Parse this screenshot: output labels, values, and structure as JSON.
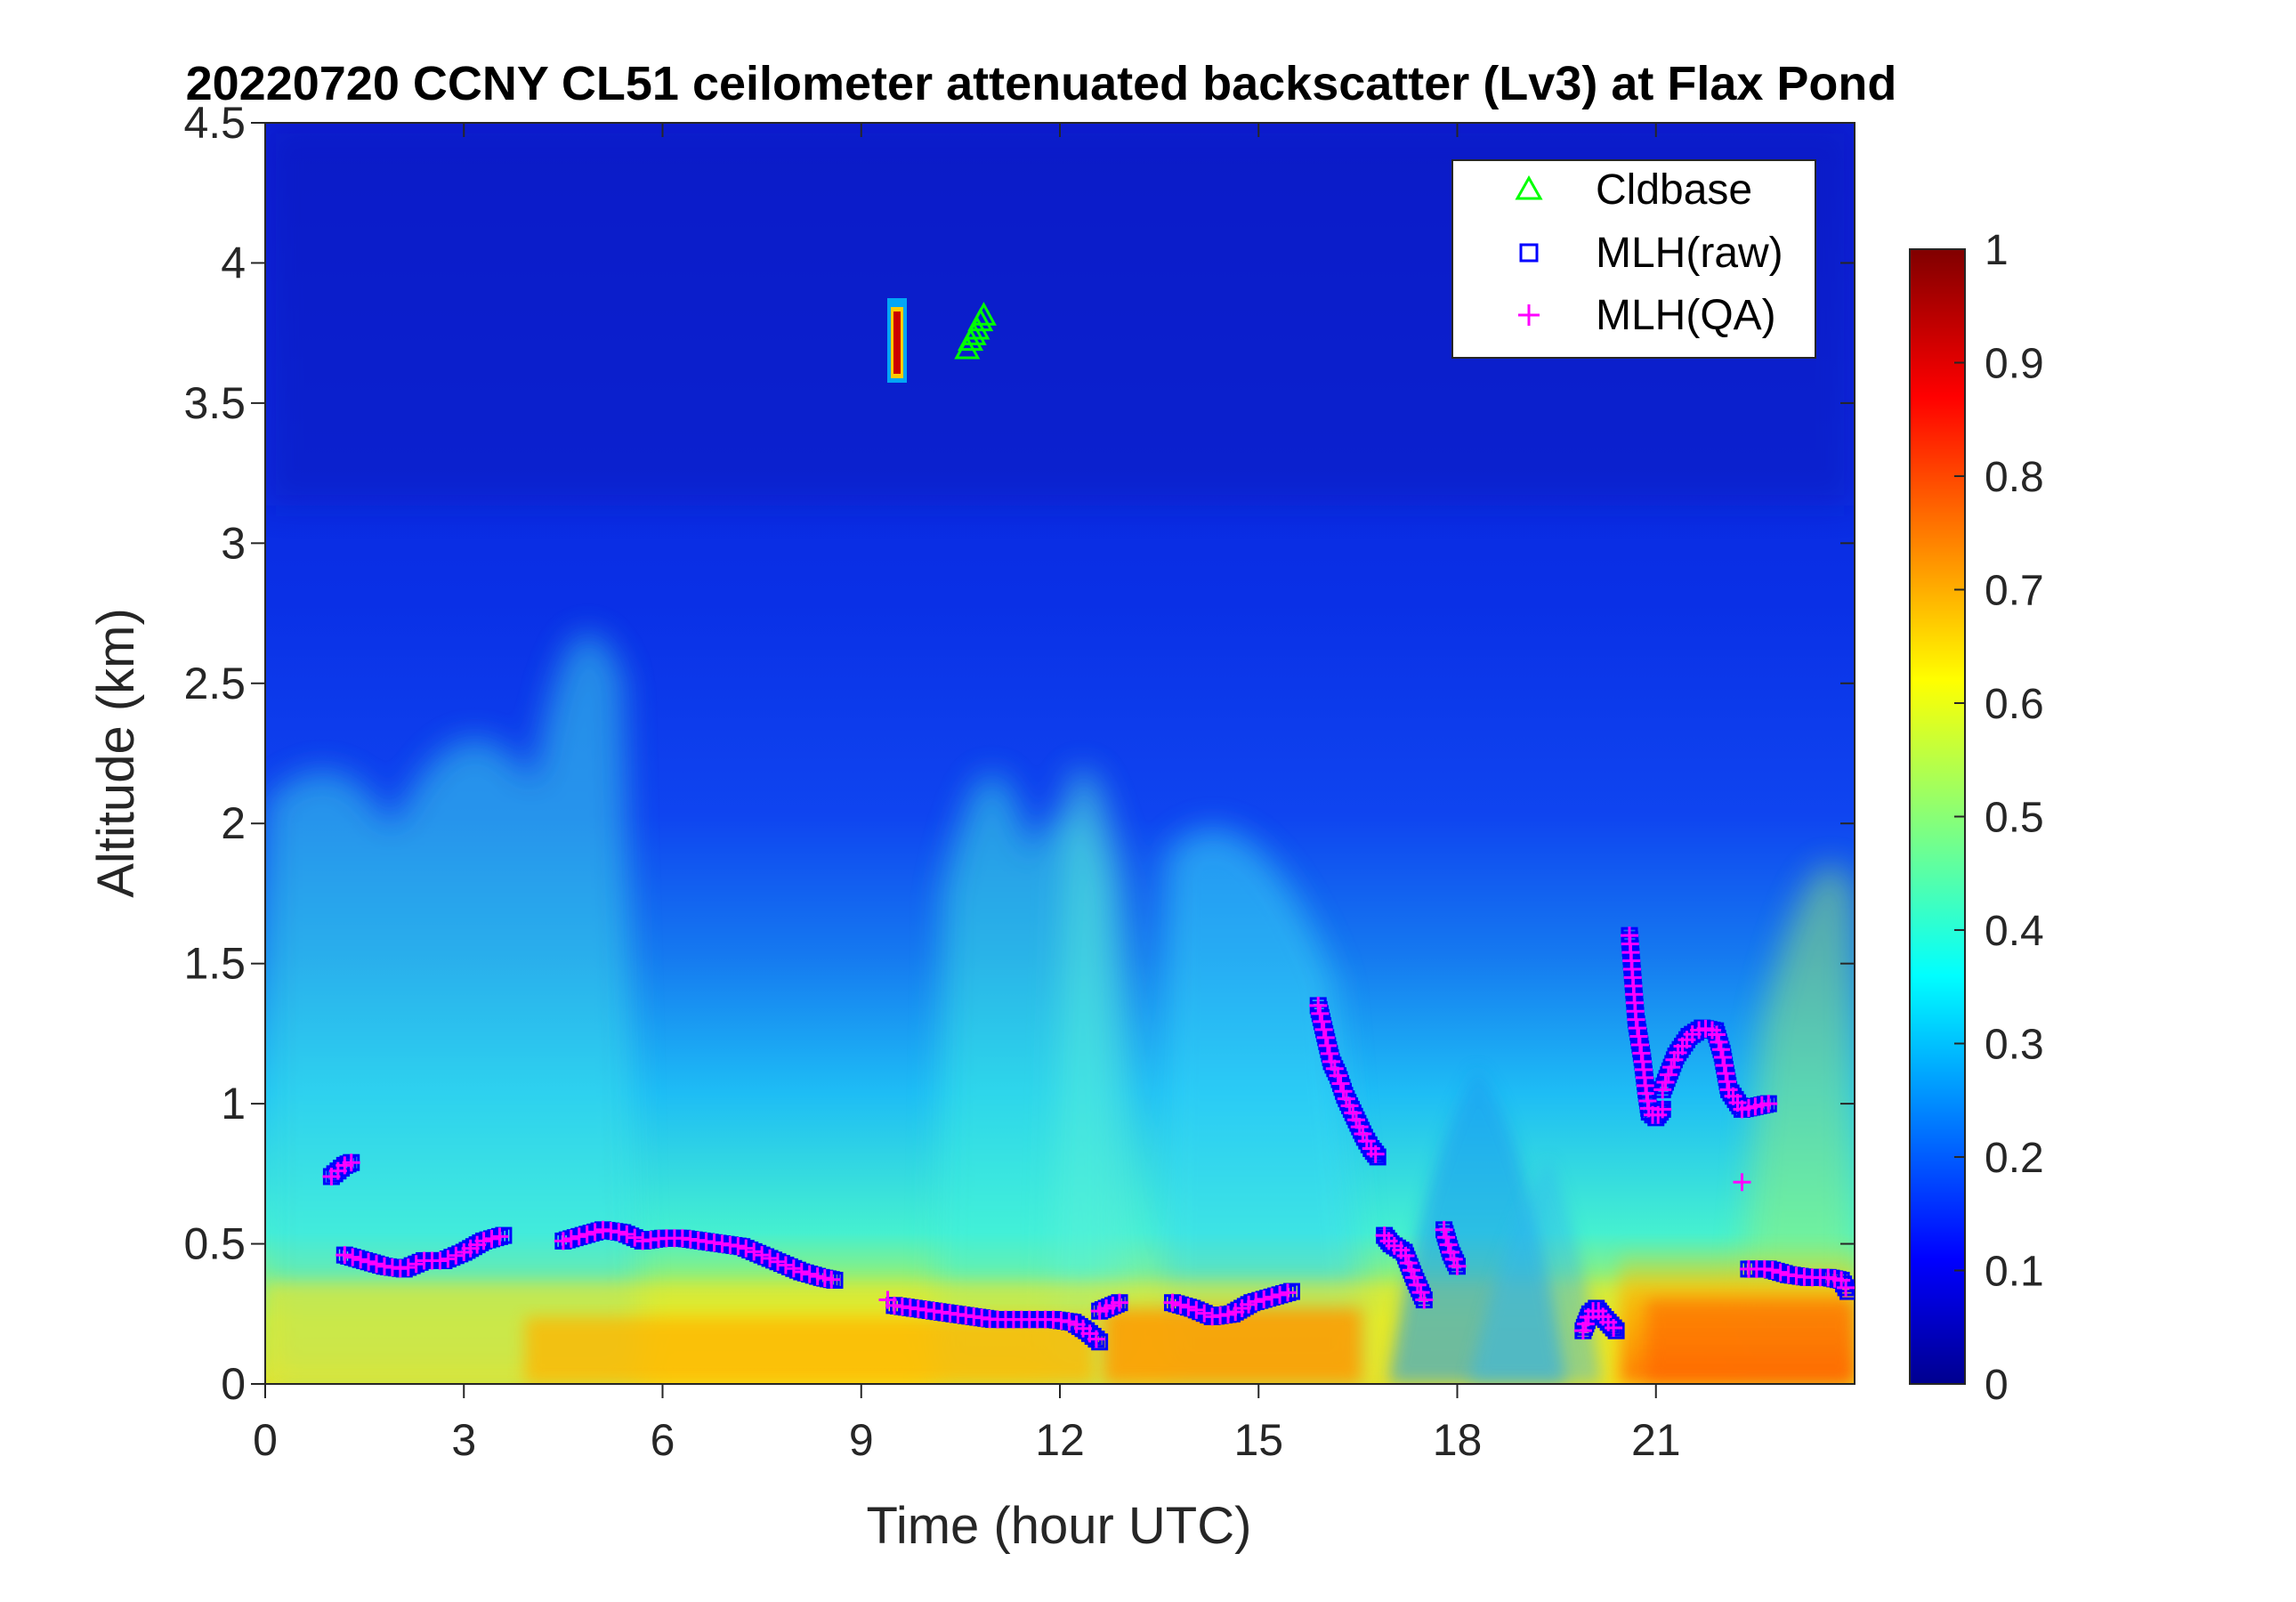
{
  "chart_data": {
    "type": "heatmap",
    "title": "20220720 CCNY CL51 ceilometer attenuated backscatter (Lv3) at Flax Pond",
    "xlabel": "Time (hour UTC)",
    "ylabel": "Altitude (km)",
    "xlim": [
      0,
      24
    ],
    "ylim": [
      0,
      4.5
    ],
    "x_ticks": [
      "0",
      "3",
      "6",
      "9",
      "12",
      "15",
      "18",
      "21"
    ],
    "y_ticks": [
      "0",
      "0.5",
      "1",
      "1.5",
      "2",
      "2.5",
      "3",
      "3.5",
      "4",
      "4.5"
    ],
    "colorbar": {
      "range": [
        0,
        1
      ],
      "ticks": [
        "0",
        "0.1",
        "0.2",
        "0.3",
        "0.4",
        "0.5",
        "0.6",
        "0.7",
        "0.8",
        "0.9",
        "1"
      ],
      "colormap": "jet"
    },
    "legend": {
      "placement": "top-right",
      "entries": [
        {
          "label": "Cldbase",
          "marker": "triangle",
          "color": "#00ff00"
        },
        {
          "label": "MLH(raw)",
          "marker": "square",
          "color": "#0000ff"
        },
        {
          "label": "MLH(QA)",
          "marker": "plus",
          "color": "#ff00ff"
        }
      ]
    },
    "series": [
      {
        "name": "Cldbase",
        "marker": "triangle",
        "color": "#00ff00",
        "x": [
          10.6,
          10.65,
          10.7,
          10.75,
          10.8,
          10.85
        ],
        "y": [
          3.69,
          3.72,
          3.74,
          3.76,
          3.79,
          3.81
        ]
      },
      {
        "name": "MLH(raw)",
        "marker": "square",
        "color": "#0000ff",
        "segments": [
          {
            "x": [
              1.0,
              1.1,
              1.2,
              1.3
            ],
            "y": [
              0.74,
              0.76,
              0.78,
              0.79
            ]
          },
          {
            "x": [
              1.2,
              1.5,
              1.8,
              2.1,
              2.4,
              2.7,
              3.0,
              3.3,
              3.6
            ],
            "y": [
              0.46,
              0.44,
              0.42,
              0.41,
              0.44,
              0.44,
              0.47,
              0.51,
              0.53
            ]
          },
          {
            "x": [
              4.5,
              4.8,
              5.1,
              5.4,
              5.7,
              6.0,
              6.3,
              6.6,
              6.9,
              7.2,
              7.5,
              7.8,
              8.1,
              8.4,
              8.6
            ],
            "y": [
              0.51,
              0.53,
              0.55,
              0.54,
              0.51,
              0.52,
              0.52,
              0.51,
              0.5,
              0.49,
              0.46,
              0.43,
              0.4,
              0.38,
              0.37
            ]
          },
          {
            "x": [
              9.5,
              9.8,
              10.1,
              10.4,
              10.7,
              11.0,
              11.3,
              11.6,
              11.9,
              12.2,
              12.4,
              12.6
            ],
            "y": [
              0.28,
              0.27,
              0.26,
              0.25,
              0.24,
              0.23,
              0.23,
              0.23,
              0.23,
              0.22,
              0.19,
              0.15
            ]
          },
          {
            "x": [
              12.6,
              12.8,
              12.9
            ],
            "y": [
              0.26,
              0.28,
              0.29
            ]
          },
          {
            "x": [
              13.7,
              14.0,
              14.3,
              14.6,
              14.9,
              15.2,
              15.5
            ],
            "y": [
              0.29,
              0.27,
              0.24,
              0.25,
              0.29,
              0.31,
              0.33
            ]
          },
          {
            "x": [
              15.9,
              16.0,
              16.1,
              16.2,
              16.3,
              16.4,
              16.5,
              16.6,
              16.7,
              16.8
            ],
            "y": [
              1.35,
              1.25,
              1.15,
              1.1,
              1.03,
              0.98,
              0.93,
              0.88,
              0.84,
              0.81
            ]
          },
          {
            "x": [
              16.9,
              17.0,
              17.2,
              17.35,
              17.5
            ],
            "y": [
              0.53,
              0.5,
              0.47,
              0.38,
              0.3
            ]
          },
          {
            "x": [
              17.8,
              17.9,
              18.0
            ],
            "y": [
              0.55,
              0.47,
              0.42
            ]
          },
          {
            "x": [
              19.9,
              20.0,
              20.1,
              20.2,
              20.4
            ],
            "y": [
              0.19,
              0.25,
              0.27,
              0.24,
              0.19
            ]
          },
          {
            "x": [
              20.6,
              20.65,
              20.7,
              20.8,
              20.85,
              20.9,
              21.0,
              21.1
            ],
            "y": [
              1.6,
              1.45,
              1.3,
              1.15,
              1.05,
              0.97,
              0.95,
              0.98
            ]
          },
          {
            "x": [
              21.1,
              21.3,
              21.5,
              21.7,
              21.9,
              22.0,
              22.1,
              22.3,
              22.5,
              22.7
            ],
            "y": [
              1.05,
              1.17,
              1.24,
              1.27,
              1.26,
              1.18,
              1.05,
              0.98,
              0.99,
              1.0
            ]
          },
          {
            "x": [
              22.4,
              22.7,
              23.0,
              23.3,
              23.6,
              23.8,
              23.9
            ],
            "y": [
              0.41,
              0.41,
              0.39,
              0.38,
              0.38,
              0.37,
              0.33
            ]
          }
        ]
      },
      {
        "name": "MLH(QA)",
        "marker": "plus",
        "color": "#ff00ff",
        "points_x": [
          9.4,
          22.3
        ],
        "points_y": [
          0.3,
          0.72
        ],
        "follows_raw": true
      }
    ]
  }
}
